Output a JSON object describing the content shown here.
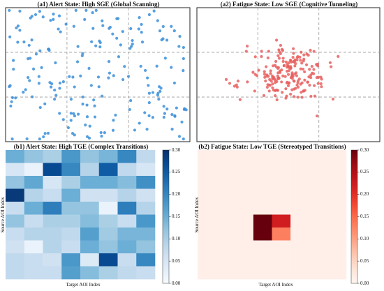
{
  "chart_data": [
    {
      "id": "a1",
      "type": "scatter",
      "title": "(a1) Alert State: High SGE (Global Scanning)",
      "xlim": [
        0,
        1
      ],
      "ylim": [
        0,
        1
      ],
      "grid_lines_x": [
        0.333,
        0.667
      ],
      "grid_lines_y": [
        0.333,
        0.667
      ],
      "point_color": "#3b8fd9",
      "point_count": 200,
      "distribution": "uniform"
    },
    {
      "id": "a2",
      "type": "scatter",
      "title": "(a2) Fatigue State: Low SGE (Cognitive Tunneling)",
      "xlim": [
        0,
        1
      ],
      "ylim": [
        0,
        1
      ],
      "grid_lines_x": [
        0.333,
        0.667
      ],
      "grid_lines_y": [
        0.333,
        0.667
      ],
      "point_color": "#e86060",
      "point_count": 200,
      "distribution": "clustered",
      "cluster_center": [
        0.5,
        0.5
      ]
    },
    {
      "id": "b1",
      "type": "heatmap",
      "title": "(b1) Alert State: High TGE (Complex Transitions)",
      "xlabel": "Target AOI Index",
      "ylabel": "Source AOI Index",
      "colormap": "Blues",
      "vmin": 0,
      "vmax": 0.3,
      "colorbar_ticks": [
        "0.30",
        "0.25",
        "0.20",
        "0.15",
        "0.10",
        "0.05",
        "0.00"
      ],
      "matrix": [
        [
          0.15,
          0.12,
          0.1,
          0.18,
          0.12,
          0.14,
          0.2,
          0.08
        ],
        [
          0.05,
          0.02,
          0.27,
          0.2,
          0.09,
          0.25,
          0.08,
          0.05
        ],
        [
          0.12,
          0.16,
          0.05,
          0.1,
          0.15,
          0.15,
          0.13,
          0.19
        ],
        [
          0.29,
          0.09,
          0.07,
          0.15,
          0.06,
          0.06,
          0.09,
          0.06
        ],
        [
          0.07,
          0.15,
          0.21,
          0.12,
          0.12,
          0.02,
          0.21,
          0.09
        ],
        [
          0.12,
          0.07,
          0.1,
          0.1,
          0.13,
          0.1,
          0.07,
          0.18
        ],
        [
          0.07,
          0.09,
          0.09,
          0.08,
          0.17,
          0.11,
          0.14,
          0.14
        ],
        [
          0.06,
          0.02,
          0.09,
          0.07,
          0.15,
          0.12,
          0.15,
          0.12
        ],
        [
          0.08,
          0.07,
          0.06,
          0.18,
          0.04,
          0.27,
          0.07,
          0.2
        ],
        [
          0.08,
          0.07,
          0.07,
          0.17,
          0.13,
          0.1,
          0.08,
          0.07
        ]
      ]
    },
    {
      "id": "b2",
      "type": "heatmap",
      "title": "(b2) Fatigue State: Low TGE (Stereotyped Transitions)",
      "xlabel": "Target AOI Index",
      "ylabel": "Source AOI Index",
      "colormap": "Reds",
      "vmin": 0,
      "vmax": 0.3,
      "colorbar_ticks": [
        "0.30",
        "0.25",
        "0.20",
        "0.15",
        "0.10",
        "0.05",
        "0.00"
      ],
      "matrix": [
        [
          0.01,
          0.01,
          0.01,
          0.01,
          0.01,
          0.01,
          0.01,
          0.01
        ],
        [
          0.01,
          0.01,
          0.01,
          0.01,
          0.01,
          0.01,
          0.01,
          0.01
        ],
        [
          0.01,
          0.01,
          0.01,
          0.01,
          0.01,
          0.01,
          0.01,
          0.01
        ],
        [
          0.01,
          0.01,
          0.01,
          0.01,
          0.01,
          0.01,
          0.01,
          0.01
        ],
        [
          0.01,
          0.01,
          0.01,
          0.01,
          0.01,
          0.01,
          0.01,
          0.01
        ],
        [
          0.01,
          0.01,
          0.01,
          0.3,
          0.22,
          0.01,
          0.01,
          0.01
        ],
        [
          0.01,
          0.01,
          0.01,
          0.3,
          0.13,
          0.01,
          0.01,
          0.01
        ],
        [
          0.01,
          0.01,
          0.01,
          0.01,
          0.01,
          0.01,
          0.01,
          0.01
        ],
        [
          0.01,
          0.01,
          0.01,
          0.01,
          0.01,
          0.01,
          0.01,
          0.01
        ],
        [
          0.01,
          0.01,
          0.01,
          0.01,
          0.01,
          0.01,
          0.01,
          0.01
        ]
      ]
    }
  ]
}
